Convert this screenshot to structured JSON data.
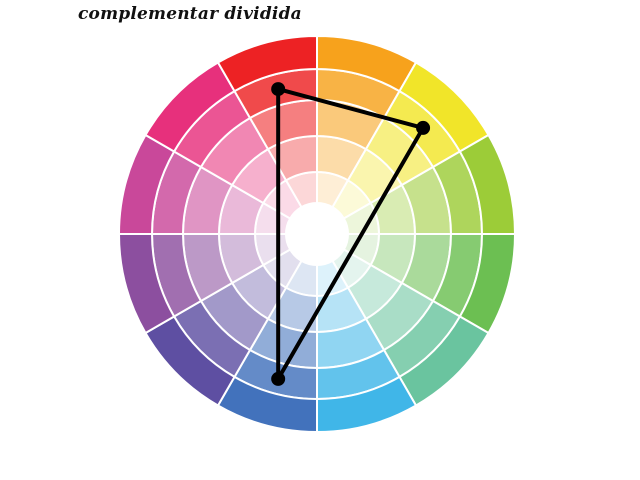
{
  "title": "complementar dividida",
  "wheel": {
    "rings": 5,
    "outer_colors": [
      "#f1c40f",
      "#f0e42a",
      "#9acc38",
      "#6cbf52",
      "#6bc49e",
      "#40b7e8",
      "#4474bd",
      "#5c4ea0",
      "#8a4f9e",
      "#c94b94",
      "#e6317b",
      "#ed2224",
      "#f7a21c"
    ],
    "hues": [
      {
        "name": "orange",
        "color": "#f7a21c"
      },
      {
        "name": "yellow",
        "color": "#f1e529"
      },
      {
        "name": "yellow-green",
        "color": "#9ccc38"
      },
      {
        "name": "green",
        "color": "#6cbf52"
      },
      {
        "name": "blue-green",
        "color": "#6ac49f"
      },
      {
        "name": "light-blue",
        "color": "#40b6e8"
      },
      {
        "name": "blue",
        "color": "#4272bc"
      },
      {
        "name": "indigo",
        "color": "#5e4fa2"
      },
      {
        "name": "violet",
        "color": "#8c4f9f"
      },
      {
        "name": "magenta",
        "color": "#c9489a"
      },
      {
        "name": "pink",
        "color": "#e7307c"
      },
      {
        "name": "red",
        "color": "#ed2224"
      }
    ],
    "triangle_hue_indices": [
      11,
      1,
      6
    ]
  }
}
